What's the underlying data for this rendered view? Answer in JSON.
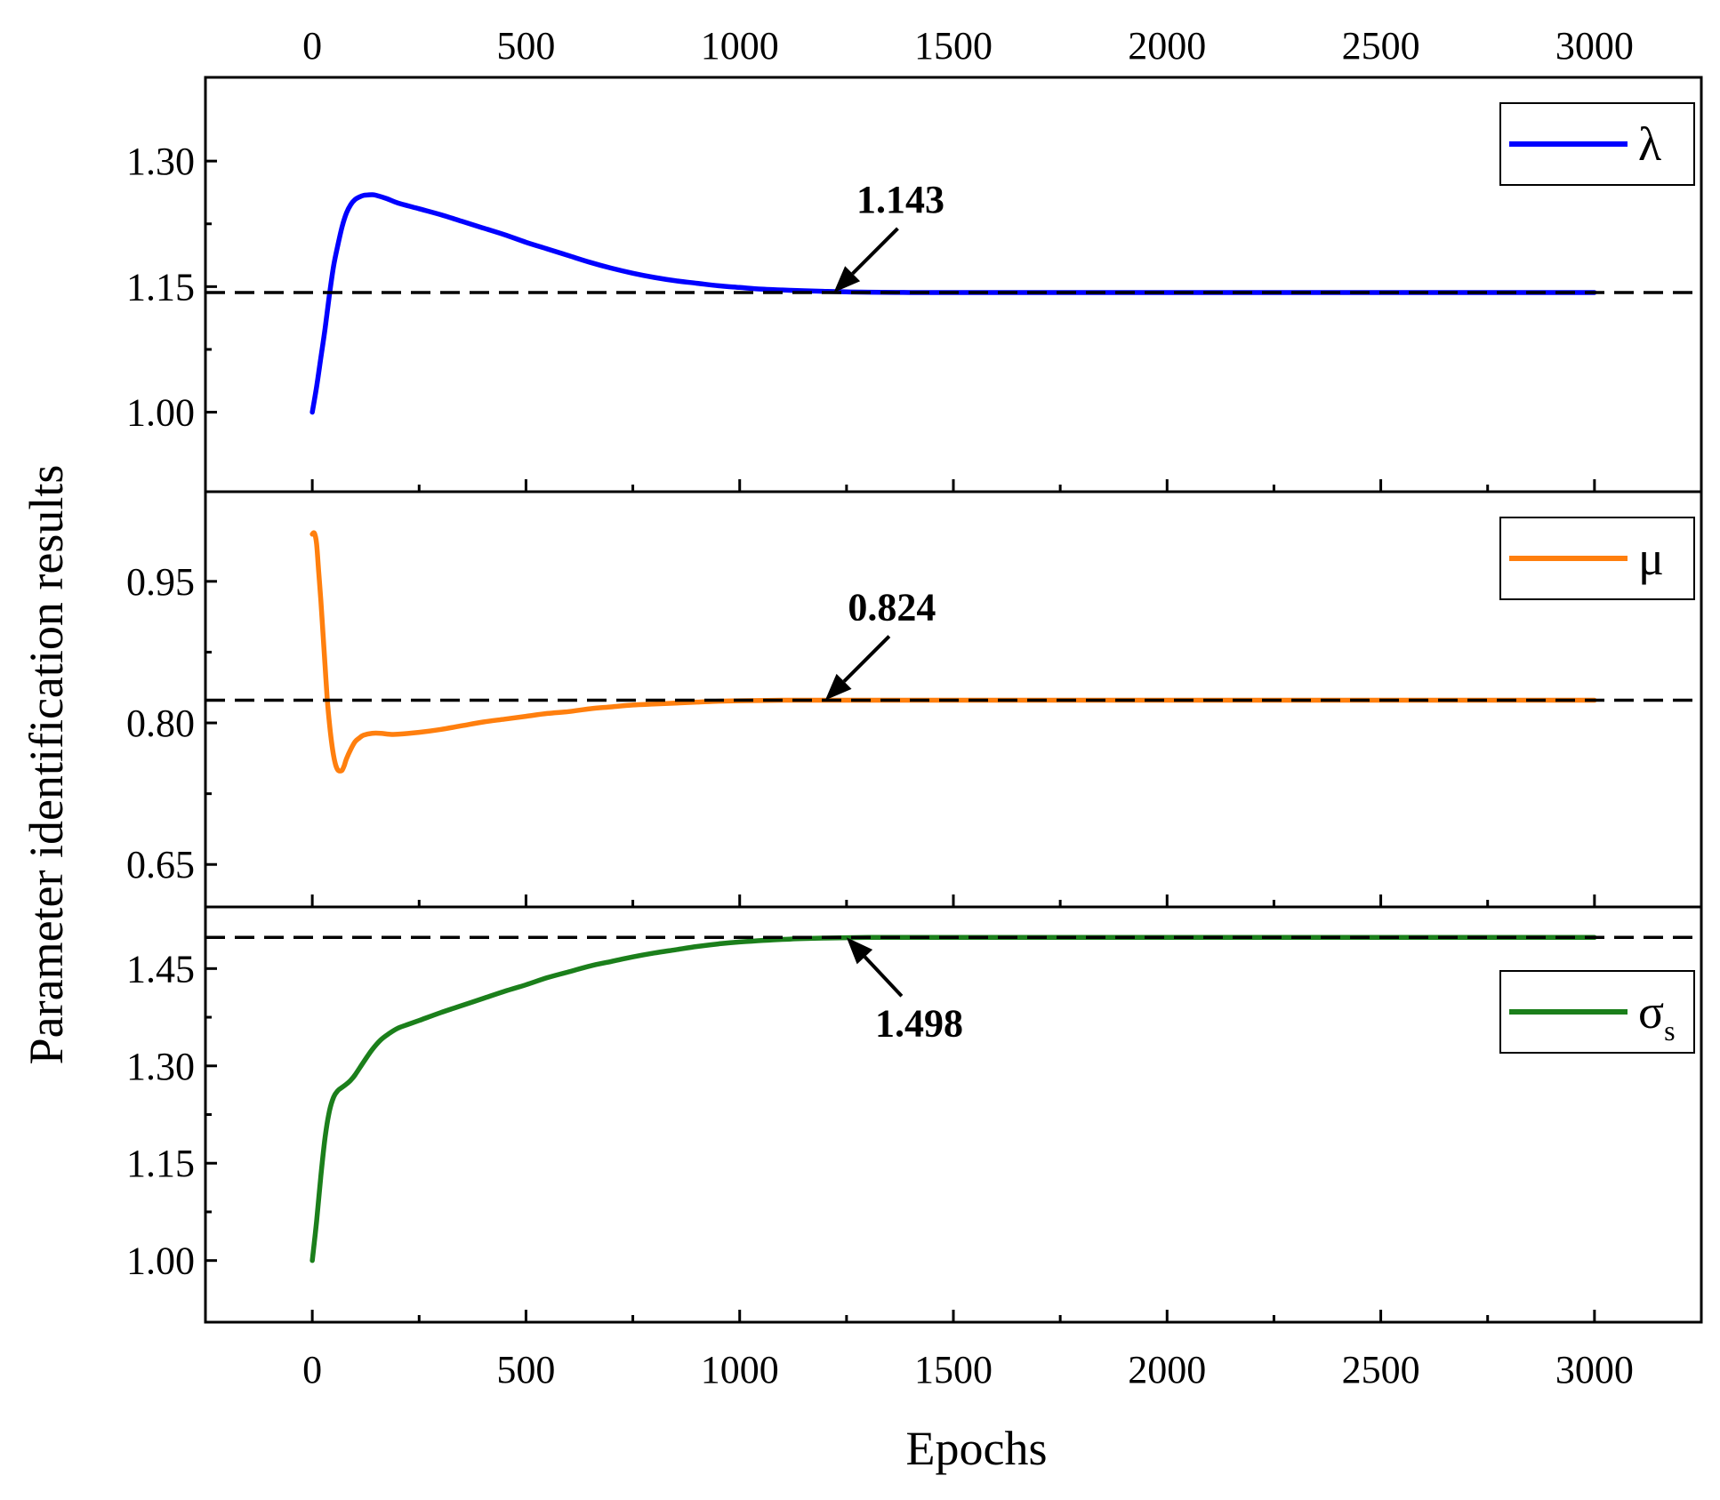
{
  "figure": {
    "ylabel": "Parameter identification results",
    "xlabel": "Epochs"
  },
  "chart_data": [
    {
      "type": "line",
      "xlabel": "Epochs",
      "ylabel": "Parameter identification results",
      "xlim": [
        -250,
        3250
      ],
      "ylim": [
        0.905,
        1.4
      ],
      "x_ticks": [
        0,
        500,
        1000,
        1500,
        2000,
        2500,
        3000
      ],
      "x_tick_labels": [
        "0",
        "500",
        "1000",
        "1500",
        "2000",
        "2500",
        "3000"
      ],
      "x_tick_labels_top": true,
      "y_ticks": [
        1.0,
        1.15,
        1.3
      ],
      "y_tick_labels": [
        "1.00",
        "1.15",
        "1.30"
      ],
      "legend": {
        "label": "λ",
        "placement": "top-right"
      },
      "color": "#0000FF",
      "reference_value": 1.143,
      "annotation": {
        "text": "1.143",
        "x": 1220,
        "y": 1.143
      },
      "series": [
        {
          "name": "λ",
          "x": [
            0,
            10,
            20,
            30,
            40,
            50,
            60,
            70,
            80,
            90,
            100,
            110,
            120,
            130,
            140,
            150,
            175,
            200,
            250,
            300,
            350,
            400,
            450,
            500,
            550,
            600,
            650,
            700,
            750,
            800,
            850,
            900,
            950,
            1000,
            1050,
            1100,
            1150,
            1200,
            1250,
            1300,
            1400,
            1500,
            1700,
            1900,
            2100,
            2300,
            2500,
            2700,
            3000
          ],
          "values": [
            1.0,
            1.03,
            1.065,
            1.1,
            1.14,
            1.175,
            1.2,
            1.222,
            1.238,
            1.248,
            1.254,
            1.257,
            1.259,
            1.2595,
            1.2598,
            1.259,
            1.255,
            1.25,
            1.243,
            1.236,
            1.228,
            1.22,
            1.212,
            1.203,
            1.195,
            1.187,
            1.179,
            1.172,
            1.166,
            1.161,
            1.157,
            1.154,
            1.151,
            1.149,
            1.147,
            1.146,
            1.145,
            1.1443,
            1.1437,
            1.1433,
            1.143,
            1.143,
            1.143,
            1.143,
            1.143,
            1.143,
            1.143,
            1.143,
            1.143
          ]
        }
      ]
    },
    {
      "type": "line",
      "xlim": [
        -250,
        3250
      ],
      "ylim": [
        0.605,
        1.045
      ],
      "x_ticks": [
        0,
        500,
        1000,
        1500,
        2000,
        2500,
        3000
      ],
      "y_ticks": [
        0.65,
        0.8,
        0.95
      ],
      "y_tick_labels": [
        "0.65",
        "0.80",
        "0.95"
      ],
      "legend": {
        "label": "μ",
        "placement": "top-right"
      },
      "color": "#FF7F0E",
      "reference_value": 0.824,
      "annotation": {
        "text": "0.824",
        "x": 1200,
        "y": 0.824
      },
      "series": [
        {
          "name": "μ",
          "x": [
            0,
            5,
            10,
            15,
            20,
            25,
            30,
            35,
            40,
            45,
            50,
            55,
            60,
            65,
            70,
            75,
            80,
            90,
            100,
            110,
            120,
            140,
            160,
            180,
            200,
            250,
            300,
            350,
            400,
            450,
            500,
            550,
            600,
            650,
            700,
            750,
            800,
            850,
            900,
            950,
            1000,
            1100,
            1200,
            1300,
            1500,
            1800,
            2100,
            2400,
            2700,
            3000
          ],
          "values": [
            1.0,
            1.001,
            0.99,
            0.96,
            0.93,
            0.895,
            0.86,
            0.825,
            0.8,
            0.78,
            0.765,
            0.755,
            0.75,
            0.749,
            0.75,
            0.755,
            0.762,
            0.772,
            0.78,
            0.784,
            0.787,
            0.789,
            0.789,
            0.788,
            0.788,
            0.79,
            0.793,
            0.797,
            0.801,
            0.804,
            0.807,
            0.81,
            0.812,
            0.815,
            0.817,
            0.819,
            0.82,
            0.821,
            0.822,
            0.823,
            0.8235,
            0.824,
            0.824,
            0.824,
            0.824,
            0.824,
            0.824,
            0.824,
            0.824,
            0.824
          ]
        }
      ]
    },
    {
      "type": "line",
      "xlim": [
        -250,
        3250
      ],
      "ylim": [
        0.905,
        1.545
      ],
      "x_ticks": [
        0,
        500,
        1000,
        1500,
        2000,
        2500,
        3000
      ],
      "x_tick_labels": [
        "0",
        "500",
        "1000",
        "1500",
        "2000",
        "2500",
        "3000"
      ],
      "y_ticks": [
        1.0,
        1.15,
        1.3,
        1.45
      ],
      "y_tick_labels": [
        "1.00",
        "1.15",
        "1.30",
        "1.45"
      ],
      "legend": {
        "label": "σ",
        "subscript": "s",
        "placement": "right"
      },
      "color": "#1B7F1B",
      "reference_value": 1.498,
      "annotation": {
        "text": "1.498",
        "x": 1250,
        "y": 1.498,
        "label_x": 1420,
        "label_y": 1.37
      },
      "series": [
        {
          "name": "σs",
          "x": [
            0,
            10,
            20,
            30,
            40,
            50,
            60,
            70,
            80,
            90,
            100,
            120,
            140,
            160,
            180,
            200,
            220,
            250,
            300,
            350,
            400,
            450,
            500,
            550,
            600,
            650,
            700,
            750,
            800,
            850,
            900,
            950,
            1000,
            1100,
            1200,
            1300,
            1400,
            1500,
            1700,
            2000,
            2300,
            2600,
            3000
          ],
          "values": [
            1.0,
            1.06,
            1.13,
            1.19,
            1.23,
            1.252,
            1.262,
            1.267,
            1.272,
            1.278,
            1.286,
            1.306,
            1.325,
            1.34,
            1.35,
            1.358,
            1.363,
            1.37,
            1.382,
            1.393,
            1.404,
            1.415,
            1.425,
            1.436,
            1.445,
            1.454,
            1.461,
            1.468,
            1.474,
            1.479,
            1.484,
            1.488,
            1.491,
            1.495,
            1.497,
            1.498,
            1.498,
            1.498,
            1.498,
            1.498,
            1.498,
            1.498,
            1.498
          ]
        }
      ]
    }
  ]
}
